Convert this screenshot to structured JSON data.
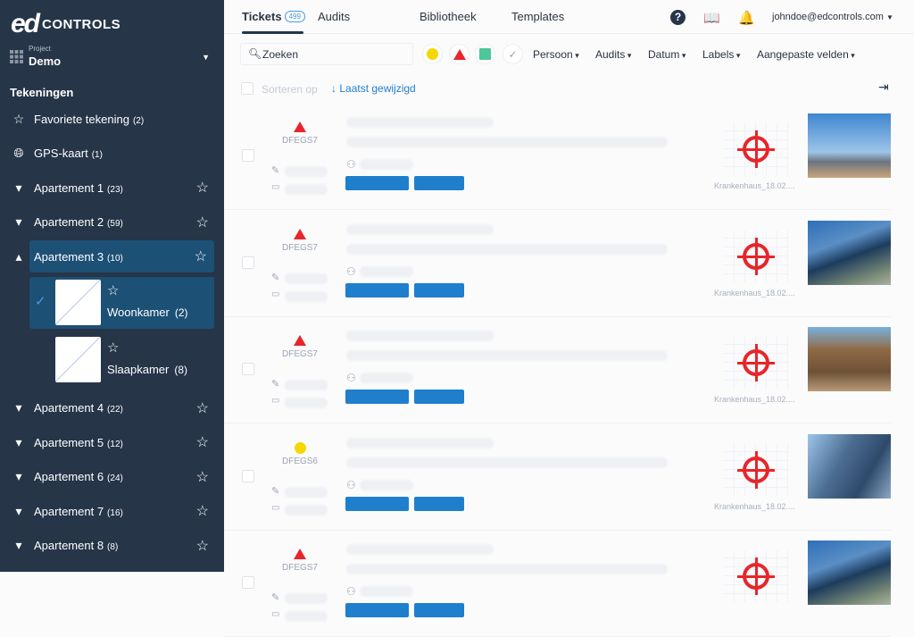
{
  "logo": {
    "text_ed": "ed",
    "text_controls": "CONTROLS"
  },
  "project": {
    "label": "Project",
    "value": "Demo"
  },
  "sidebar": {
    "section": "Tekeningen",
    "items": [
      {
        "label": "Favoriete tekening",
        "count": "(2)",
        "icon": "star-icon"
      },
      {
        "label": "GPS-kaart",
        "count": "(1)",
        "icon": "globe-icon"
      },
      {
        "label": "Apartement 1",
        "count": "(23)",
        "icon": "caret-down-icon"
      },
      {
        "label": "Apartement 2",
        "count": "(59)",
        "icon": "caret-down-icon"
      },
      {
        "label": "Apartement 3",
        "count": "(10)",
        "icon": "caret-up-icon",
        "selected": true
      },
      {
        "label": "Apartement 4",
        "count": "(22)",
        "icon": "caret-down-icon"
      },
      {
        "label": "Apartement 5",
        "count": "(12)",
        "icon": "caret-down-icon"
      },
      {
        "label": "Apartement 6",
        "count": "(24)",
        "icon": "caret-down-icon"
      },
      {
        "label": "Apartement 7",
        "count": "(16)",
        "icon": "caret-down-icon"
      },
      {
        "label": "Apartement 8",
        "count": "(8)",
        "icon": "caret-down-icon"
      }
    ],
    "drawings": [
      {
        "label": "Woonkamer",
        "count": "(2)",
        "selected": true
      },
      {
        "label": "Slaapkamer",
        "count": "(8)"
      }
    ]
  },
  "tabs": [
    {
      "label": "Tickets",
      "badge": "499",
      "active": true
    },
    {
      "label": "Audits"
    },
    {
      "label": "Bibliotheek"
    },
    {
      "label": "Templates"
    }
  ],
  "user": "johndoe@edcontrols.com",
  "filters": {
    "search_placeholder": "Zoeken",
    "dropdowns": [
      "Persoon",
      "Audits",
      "Datum",
      "Labels",
      "Aangepaste velden"
    ]
  },
  "sort": {
    "label": "Sorteren op",
    "value": "Laatst gewijzigd"
  },
  "colors": {
    "sidebar": "#263548",
    "selected": "#1d5075",
    "accent": "#1f7fcc",
    "red": "#e8252a",
    "yellow": "#f5d800",
    "green": "#4cc79a"
  },
  "tickets": [
    {
      "status": "red-triangle",
      "code": "DFEGS7",
      "plan": "Krankenhaus_18.02....",
      "photo": "crane"
    },
    {
      "status": "red-triangle",
      "code": "DFEGS7",
      "plan": "Krankenhaus_18.02....",
      "photo": "office"
    },
    {
      "status": "red-triangle",
      "code": "DFEGS7",
      "plan": "Krankenhaus_18.02....",
      "photo": "construction"
    },
    {
      "status": "yellow-circle",
      "code": "DFEGS6",
      "plan": "Krankenhaus_18.02....",
      "photo": "towers"
    },
    {
      "status": "red-triangle",
      "code": "DFEGS7",
      "plan": "",
      "photo": "office"
    }
  ]
}
